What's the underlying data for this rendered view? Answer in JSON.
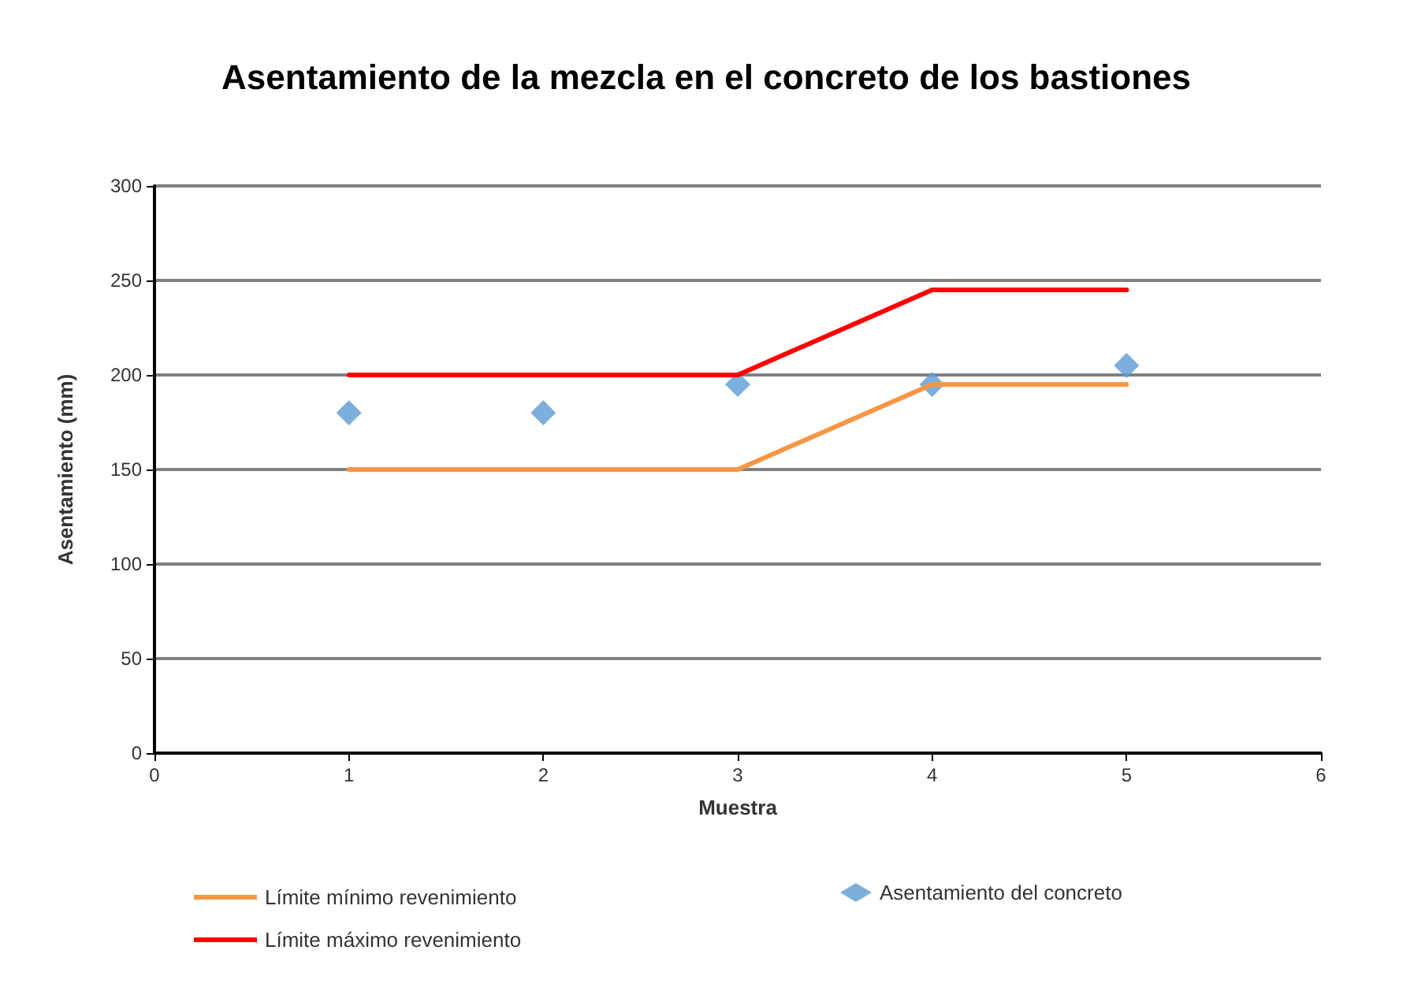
{
  "chart_data": {
    "type": "line",
    "title": "Asentamiento de la mezcla en el concreto de los bastiones",
    "xlabel": "Muestra",
    "ylabel": "Asentamiento (mm)",
    "x": [
      1,
      2,
      3,
      4,
      5
    ],
    "series": [
      {
        "name": "Límite mínimo revenimiento",
        "color": "#f79646",
        "values": [
          150,
          150,
          150,
          195,
          195
        ],
        "marker": "none"
      },
      {
        "name": "Límite máximo revenimiento",
        "color": "#ff0000",
        "values": [
          200,
          200,
          200,
          245,
          245
        ],
        "marker": "none"
      },
      {
        "name": "Asentamiento del concreto",
        "type": "scatter",
        "color": "#5b9bd5",
        "values": [
          180,
          180,
          195,
          195,
          205
        ],
        "marker": "diamond"
      }
    ],
    "xlim": [
      0,
      6
    ],
    "xticks": [
      0,
      1,
      2,
      3,
      4,
      5,
      6
    ],
    "ylim": [
      0,
      300
    ],
    "yticks": [
      0,
      50,
      100,
      150,
      200,
      250,
      300
    ],
    "grid": "y",
    "legend": "bottom",
    "line_style": "solid"
  }
}
